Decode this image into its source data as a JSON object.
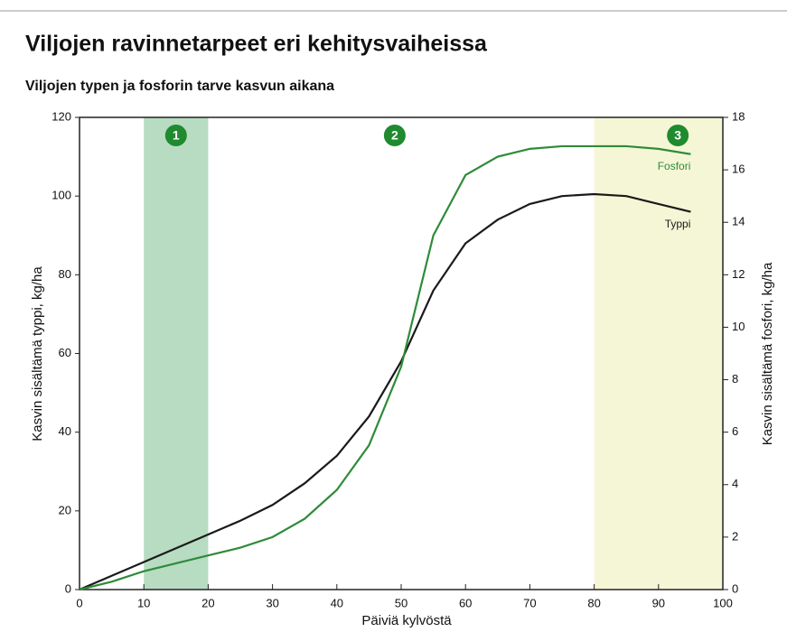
{
  "chart_data": {
    "type": "line",
    "title": "Viljojen ravinnetarpeet eri kehitysvaiheissa",
    "subtitle": "Viljojen typen ja fosforin tarve kasvun aikana",
    "x_label": "Päiviä kylvöstä",
    "y_label": "Kasvin sisältämä typpi, kg/ha",
    "y2_label": "Kasvin sisältämä fosfori, kg/ha",
    "x": [
      0,
      5,
      10,
      15,
      20,
      25,
      30,
      35,
      40,
      45,
      50,
      55,
      60,
      65,
      70,
      75,
      80,
      85,
      90,
      95
    ],
    "series": [
      {
        "name": "Typpi",
        "color": "#1a1a1a",
        "values": [
          0,
          3.5,
          7,
          10.5,
          14,
          17.5,
          21.5,
          27,
          34,
          44,
          58,
          76,
          88,
          94,
          98,
          100,
          100.5,
          100,
          98,
          96
        ]
      },
      {
        "name": "Fosfori",
        "color": "#2e8b3a",
        "axis": "y2",
        "values": [
          0,
          0.3,
          0.7,
          1.0,
          1.3,
          1.6,
          2.0,
          2.7,
          3.8,
          5.5,
          8.5,
          13.5,
          15.8,
          16.5,
          16.8,
          16.9,
          16.9,
          16.9,
          16.8,
          16.6
        ]
      }
    ],
    "stages": [
      {
        "label": "1",
        "x": 15,
        "band": [
          10,
          20
        ],
        "color": "#b7dcc2"
      },
      {
        "label": "2",
        "x": 49
      },
      {
        "label": "3",
        "x": 93,
        "band": [
          80,
          100
        ],
        "color": "#f5f6d6"
      }
    ],
    "xlim": [
      0,
      100
    ],
    "xticks": [
      0,
      10,
      20,
      30,
      40,
      50,
      60,
      70,
      80,
      90,
      100
    ],
    "ylim": [
      0,
      120
    ],
    "yticks": [
      0,
      20,
      40,
      60,
      80,
      100,
      120
    ],
    "y2lim": [
      0,
      18
    ],
    "y2ticks": [
      0,
      2,
      4,
      6,
      8,
      10,
      12,
      14,
      16,
      18
    ]
  }
}
